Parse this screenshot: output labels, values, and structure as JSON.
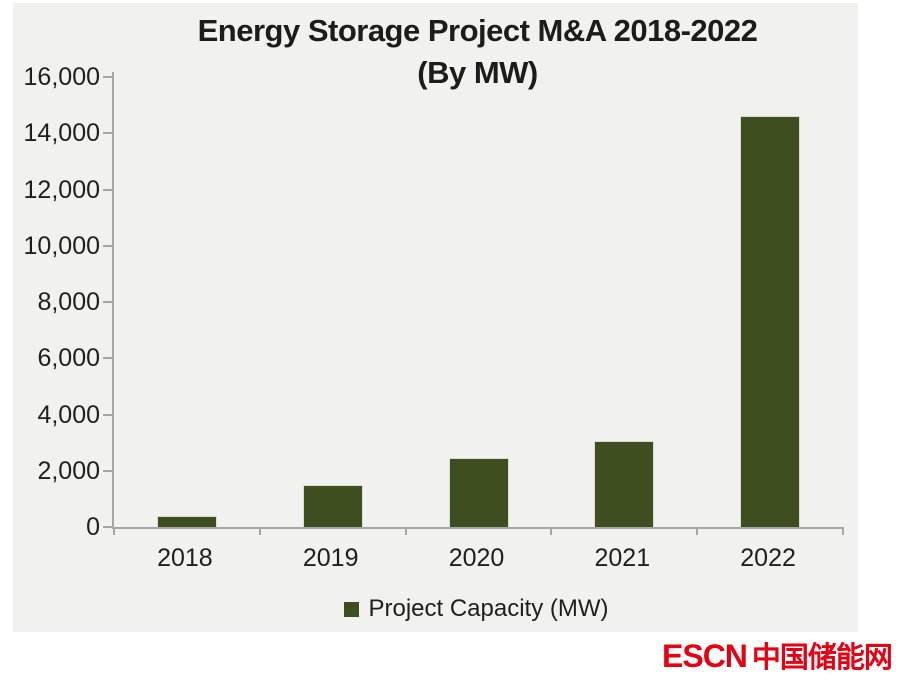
{
  "title": {
    "line1": "Energy Storage Project M&A 2018-2022",
    "line2": "(By MW)"
  },
  "chart_data": {
    "type": "bar",
    "title": "Energy Storage Project M&A 2018-2022 (By MW)",
    "categories": [
      "2018",
      "2019",
      "2020",
      "2021",
      "2022"
    ],
    "series": [
      {
        "name": "Project Capacity (MW)",
        "values": [
          400,
          1480,
          2440,
          3040,
          14600
        ]
      }
    ],
    "xlabel": "",
    "ylabel": "",
    "ylim": [
      0,
      16000
    ],
    "ytick_step": 2000,
    "ytick_labels": [
      "0",
      "2,000",
      "4,000",
      "6,000",
      "8,000",
      "10,000",
      "12,000",
      "14,000",
      "16,000"
    ],
    "grid": false,
    "legend_position": "bottom"
  },
  "legend": {
    "label": "Project Capacity (MW)"
  },
  "watermark": {
    "text_latin": "ESCN",
    "text_cjk": "中国储能网"
  },
  "colors": {
    "bar_fill": "#3f4e20",
    "bar_edge": "#dadfcc",
    "panel_bg": "#f1f1ef",
    "axis": "#a6a6a6",
    "text": "#1f1f1f",
    "watermark_red": "#e60012"
  }
}
